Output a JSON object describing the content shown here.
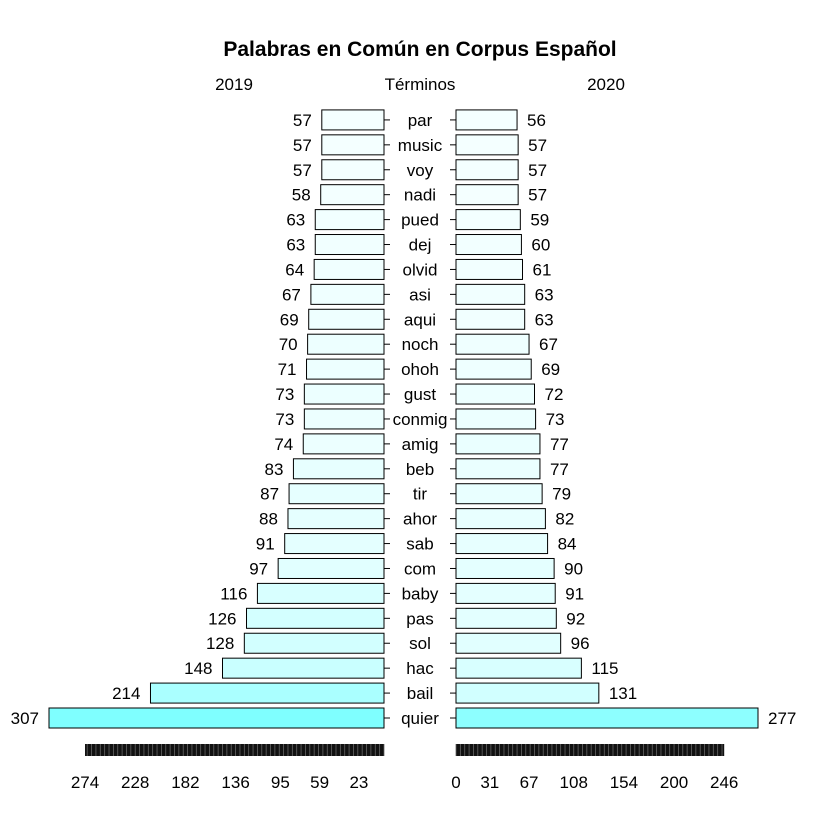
{
  "chart_data": {
    "type": "bar",
    "orientation": "horizontal",
    "layout": "pyramid",
    "title": "Palabras en Común en Corpus Español",
    "center_label": "Términos",
    "categories": [
      "quier",
      "bail",
      "hac",
      "sol",
      "pas",
      "baby",
      "com",
      "sab",
      "ahor",
      "tir",
      "beb",
      "amig",
      "conmig",
      "gust",
      "ohoh",
      "noch",
      "aqui",
      "asi",
      "olvid",
      "dej",
      "pued",
      "nadi",
      "voy",
      "music",
      "par"
    ],
    "series": [
      {
        "name": "2019",
        "side": "left",
        "values": [
          307,
          214,
          148,
          128,
          126,
          116,
          97,
          91,
          88,
          87,
          83,
          74,
          73,
          73,
          71,
          70,
          69,
          67,
          64,
          63,
          63,
          58,
          57,
          57,
          57
        ]
      },
      {
        "name": "2020",
        "side": "right",
        "values": [
          277,
          131,
          115,
          96,
          92,
          91,
          90,
          84,
          82,
          79,
          77,
          77,
          73,
          72,
          69,
          67,
          63,
          63,
          61,
          60,
          59,
          57,
          57,
          57,
          56
        ]
      }
    ],
    "left_axis_ticks": [
      274,
      228,
      182,
      136,
      95,
      59,
      23
    ],
    "right_axis_ticks": [
      0,
      31,
      67,
      108,
      154,
      200,
      246
    ],
    "colors": {
      "max": "#7fffff",
      "min": "#f4ffff",
      "edge": "#000000"
    },
    "grid": false
  }
}
